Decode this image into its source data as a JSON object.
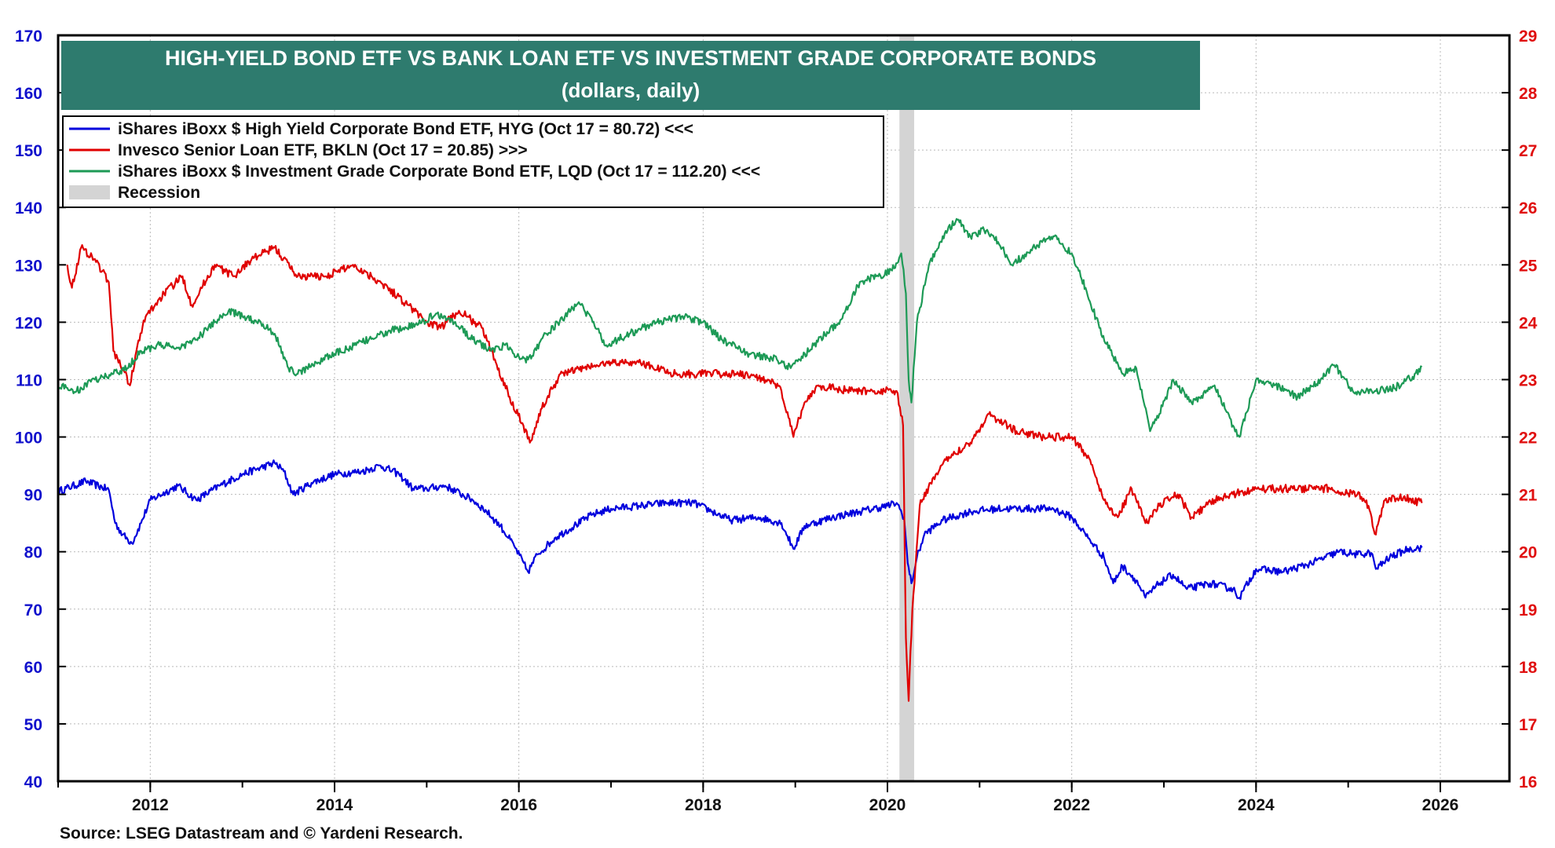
{
  "chart_data": {
    "type": "line",
    "title": "HIGH-YIELD BOND ETF VS BANK LOAN ETF VS INVESTMENT GRADE CORPORATE BONDS",
    "subtitle": "(dollars, daily)",
    "source": "Source: LSEG Datastream and © Yardeni Research.",
    "x_range": [
      2011.0,
      2026.75
    ],
    "x_ticks": [
      "2012",
      "2014",
      "2016",
      "2018",
      "2020",
      "2022",
      "2024",
      "2026"
    ],
    "left_axis": {
      "range": [
        40,
        170
      ],
      "ticks": [
        "40",
        "50",
        "60",
        "70",
        "80",
        "90",
        "100",
        "110",
        "120",
        "130",
        "140",
        "150",
        "160",
        "170"
      ],
      "color": "#1010cc"
    },
    "right_axis": {
      "range": [
        16,
        29
      ],
      "ticks": [
        "16",
        "17",
        "18",
        "19",
        "20",
        "21",
        "22",
        "23",
        "24",
        "25",
        "26",
        "27",
        "28",
        "29"
      ],
      "color": "#e01010"
    },
    "grid": true,
    "legend_placement": "top-left",
    "recession": {
      "label": "Recession",
      "start": 2020.13,
      "end": 2020.29,
      "color": "#d4d4d4"
    },
    "series": [
      {
        "name": "iShares iBoxx $ High Yield Corporate Bond ETF, HYG (Oct 17 = 80.72) <<<",
        "axis": "left",
        "color": "#0000dd",
        "points": [
          [
            2011.0,
            90.5
          ],
          [
            2011.3,
            92.3
          ],
          [
            2011.55,
            90.8
          ],
          [
            2011.62,
            85
          ],
          [
            2011.7,
            83
          ],
          [
            2011.8,
            81.5
          ],
          [
            2011.9,
            85
          ],
          [
            2012.0,
            89
          ],
          [
            2012.3,
            91.5
          ],
          [
            2012.5,
            89
          ],
          [
            2012.75,
            91.5
          ],
          [
            2013.0,
            93.5
          ],
          [
            2013.35,
            95.5
          ],
          [
            2013.45,
            94
          ],
          [
            2013.55,
            90
          ],
          [
            2013.75,
            92
          ],
          [
            2014.0,
            93.5
          ],
          [
            2014.3,
            94
          ],
          [
            2014.5,
            95
          ],
          [
            2014.7,
            93.5
          ],
          [
            2014.85,
            91
          ],
          [
            2015.0,
            91
          ],
          [
            2015.2,
            91.5
          ],
          [
            2015.5,
            89
          ],
          [
            2015.65,
            87
          ],
          [
            2015.8,
            84.5
          ],
          [
            2015.95,
            81
          ],
          [
            2016.1,
            76.5
          ],
          [
            2016.2,
            79.5
          ],
          [
            2016.4,
            82.5
          ],
          [
            2016.6,
            84.5
          ],
          [
            2016.8,
            86.5
          ],
          [
            2017.0,
            87.5
          ],
          [
            2017.3,
            88
          ],
          [
            2017.6,
            88.5
          ],
          [
            2017.9,
            88.5
          ],
          [
            2018.1,
            87
          ],
          [
            2018.3,
            85.5
          ],
          [
            2018.6,
            86
          ],
          [
            2018.85,
            85
          ],
          [
            2018.98,
            80.5
          ],
          [
            2019.1,
            84.5
          ],
          [
            2019.4,
            86
          ],
          [
            2019.7,
            87
          ],
          [
            2020.0,
            88
          ],
          [
            2020.1,
            88.5
          ],
          [
            2020.18,
            86
          ],
          [
            2020.22,
            78
          ],
          [
            2020.26,
            74.5
          ],
          [
            2020.32,
            79
          ],
          [
            2020.4,
            83
          ],
          [
            2020.6,
            85.5
          ],
          [
            2020.9,
            87
          ],
          [
            2021.2,
            87.5
          ],
          [
            2021.5,
            87.5
          ],
          [
            2021.8,
            87.5
          ],
          [
            2022.0,
            86
          ],
          [
            2022.2,
            82
          ],
          [
            2022.35,
            79
          ],
          [
            2022.45,
            74.5
          ],
          [
            2022.55,
            77.5
          ],
          [
            2022.7,
            75
          ],
          [
            2022.8,
            72
          ],
          [
            2022.95,
            74.5
          ],
          [
            2023.1,
            76
          ],
          [
            2023.25,
            73.5
          ],
          [
            2023.5,
            74.5
          ],
          [
            2023.75,
            73.5
          ],
          [
            2023.82,
            72
          ],
          [
            2024.0,
            77
          ],
          [
            2024.3,
            76.5
          ],
          [
            2024.6,
            78
          ],
          [
            2024.9,
            80
          ],
          [
            2025.1,
            79.5
          ],
          [
            2025.25,
            79.8
          ],
          [
            2025.3,
            77
          ],
          [
            2025.45,
            79
          ],
          [
            2025.65,
            80.5
          ],
          [
            2025.8,
            80.72
          ]
        ]
      },
      {
        "name": "Invesco Senior Loan ETF, BKLN (Oct 17 = 20.85) >>>",
        "axis": "right",
        "color": "#e00000",
        "points": [
          [
            2011.1,
            25.0
          ],
          [
            2011.15,
            24.6
          ],
          [
            2011.25,
            25.3
          ],
          [
            2011.4,
            25.1
          ],
          [
            2011.55,
            24.7
          ],
          [
            2011.6,
            23.5
          ],
          [
            2011.7,
            23.2
          ],
          [
            2011.78,
            22.9
          ],
          [
            2011.85,
            23.5
          ],
          [
            2011.95,
            24.1
          ],
          [
            2012.15,
            24.5
          ],
          [
            2012.35,
            24.8
          ],
          [
            2012.45,
            24.3
          ],
          [
            2012.7,
            25.0
          ],
          [
            2012.9,
            24.8
          ],
          [
            2013.1,
            25.1
          ],
          [
            2013.35,
            25.3
          ],
          [
            2013.6,
            24.8
          ],
          [
            2013.9,
            24.8
          ],
          [
            2014.2,
            25.0
          ],
          [
            2014.5,
            24.7
          ],
          [
            2014.8,
            24.3
          ],
          [
            2015.0,
            24.0
          ],
          [
            2015.15,
            23.9
          ],
          [
            2015.35,
            24.2
          ],
          [
            2015.6,
            23.9
          ],
          [
            2015.75,
            23.3
          ],
          [
            2015.9,
            22.7
          ],
          [
            2016.05,
            22.2
          ],
          [
            2016.12,
            21.9
          ],
          [
            2016.25,
            22.5
          ],
          [
            2016.45,
            23.1
          ],
          [
            2016.7,
            23.2
          ],
          [
            2017.0,
            23.3
          ],
          [
            2017.3,
            23.3
          ],
          [
            2017.7,
            23.1
          ],
          [
            2018.0,
            23.1
          ],
          [
            2018.35,
            23.1
          ],
          [
            2018.7,
            23.0
          ],
          [
            2018.85,
            22.8
          ],
          [
            2018.98,
            22.0
          ],
          [
            2019.1,
            22.6
          ],
          [
            2019.25,
            22.9
          ],
          [
            2019.6,
            22.8
          ],
          [
            2019.9,
            22.8
          ],
          [
            2020.1,
            22.8
          ],
          [
            2020.17,
            22.2
          ],
          [
            2020.2,
            18.5
          ],
          [
            2020.23,
            17.4
          ],
          [
            2020.27,
            19.0
          ],
          [
            2020.35,
            20.8
          ],
          [
            2020.5,
            21.3
          ],
          [
            2020.7,
            21.7
          ],
          [
            2020.9,
            21.9
          ],
          [
            2021.1,
            22.4
          ],
          [
            2021.4,
            22.1
          ],
          [
            2021.7,
            22.0
          ],
          [
            2022.0,
            22.0
          ],
          [
            2022.2,
            21.6
          ],
          [
            2022.35,
            20.9
          ],
          [
            2022.5,
            20.6
          ],
          [
            2022.65,
            21.1
          ],
          [
            2022.8,
            20.5
          ],
          [
            2022.95,
            20.8
          ],
          [
            2023.15,
            21.0
          ],
          [
            2023.3,
            20.6
          ],
          [
            2023.55,
            20.9
          ],
          [
            2023.75,
            21.0
          ],
          [
            2024.0,
            21.1
          ],
          [
            2024.4,
            21.1
          ],
          [
            2024.8,
            21.1
          ],
          [
            2025.1,
            21.0
          ],
          [
            2025.22,
            20.8
          ],
          [
            2025.3,
            20.3
          ],
          [
            2025.4,
            20.9
          ],
          [
            2025.6,
            20.95
          ],
          [
            2025.8,
            20.85
          ]
        ]
      },
      {
        "name": "iShares iBoxx $ Investment Grade Corporate Bond ETF, LQD (Oct 17 = 112.20) <<<",
        "axis": "left",
        "color": "#1d9a56",
        "points": [
          [
            2011.0,
            109
          ],
          [
            2011.2,
            108
          ],
          [
            2011.4,
            110
          ],
          [
            2011.6,
            111
          ],
          [
            2011.75,
            112
          ],
          [
            2011.9,
            115
          ],
          [
            2012.1,
            116
          ],
          [
            2012.3,
            115.5
          ],
          [
            2012.5,
            117
          ],
          [
            2012.7,
            120
          ],
          [
            2012.85,
            122
          ],
          [
            2013.0,
            121
          ],
          [
            2013.2,
            120
          ],
          [
            2013.35,
            118
          ],
          [
            2013.5,
            112
          ],
          [
            2013.6,
            111
          ],
          [
            2013.8,
            113
          ],
          [
            2014.0,
            114.5
          ],
          [
            2014.3,
            116.5
          ],
          [
            2014.6,
            118.5
          ],
          [
            2014.9,
            119.5
          ],
          [
            2015.1,
            121.5
          ],
          [
            2015.3,
            120
          ],
          [
            2015.5,
            117
          ],
          [
            2015.7,
            115
          ],
          [
            2015.85,
            116
          ],
          [
            2016.0,
            114
          ],
          [
            2016.1,
            113.5
          ],
          [
            2016.3,
            118
          ],
          [
            2016.5,
            121
          ],
          [
            2016.65,
            123.5
          ],
          [
            2016.8,
            120
          ],
          [
            2016.95,
            116
          ],
          [
            2017.2,
            118
          ],
          [
            2017.5,
            120
          ],
          [
            2017.8,
            121
          ],
          [
            2018.0,
            120
          ],
          [
            2018.2,
            117
          ],
          [
            2018.5,
            114.5
          ],
          [
            2018.8,
            113.5
          ],
          [
            2018.95,
            112
          ],
          [
            2019.2,
            116
          ],
          [
            2019.5,
            120.5
          ],
          [
            2019.7,
            127
          ],
          [
            2019.9,
            128
          ],
          [
            2020.05,
            129
          ],
          [
            2020.15,
            132
          ],
          [
            2020.2,
            125
          ],
          [
            2020.23,
            110
          ],
          [
            2020.26,
            106
          ],
          [
            2020.32,
            120
          ],
          [
            2020.45,
            130
          ],
          [
            2020.6,
            135
          ],
          [
            2020.75,
            138
          ],
          [
            2020.9,
            135
          ],
          [
            2021.05,
            136
          ],
          [
            2021.2,
            134
          ],
          [
            2021.35,
            130
          ],
          [
            2021.6,
            133
          ],
          [
            2021.8,
            135
          ],
          [
            2022.0,
            132
          ],
          [
            2022.15,
            126
          ],
          [
            2022.3,
            119
          ],
          [
            2022.45,
            114
          ],
          [
            2022.55,
            111
          ],
          [
            2022.7,
            112
          ],
          [
            2022.85,
            101
          ],
          [
            2022.95,
            104
          ],
          [
            2023.1,
            110
          ],
          [
            2023.3,
            106
          ],
          [
            2023.55,
            109
          ],
          [
            2023.75,
            102
          ],
          [
            2023.82,
            100
          ],
          [
            2024.0,
            110
          ],
          [
            2024.2,
            109
          ],
          [
            2024.45,
            107
          ],
          [
            2024.7,
            110
          ],
          [
            2024.85,
            112.5
          ],
          [
            2025.05,
            108
          ],
          [
            2025.3,
            108
          ],
          [
            2025.5,
            108.5
          ],
          [
            2025.7,
            110.5
          ],
          [
            2025.8,
            112.2
          ]
        ]
      }
    ]
  }
}
